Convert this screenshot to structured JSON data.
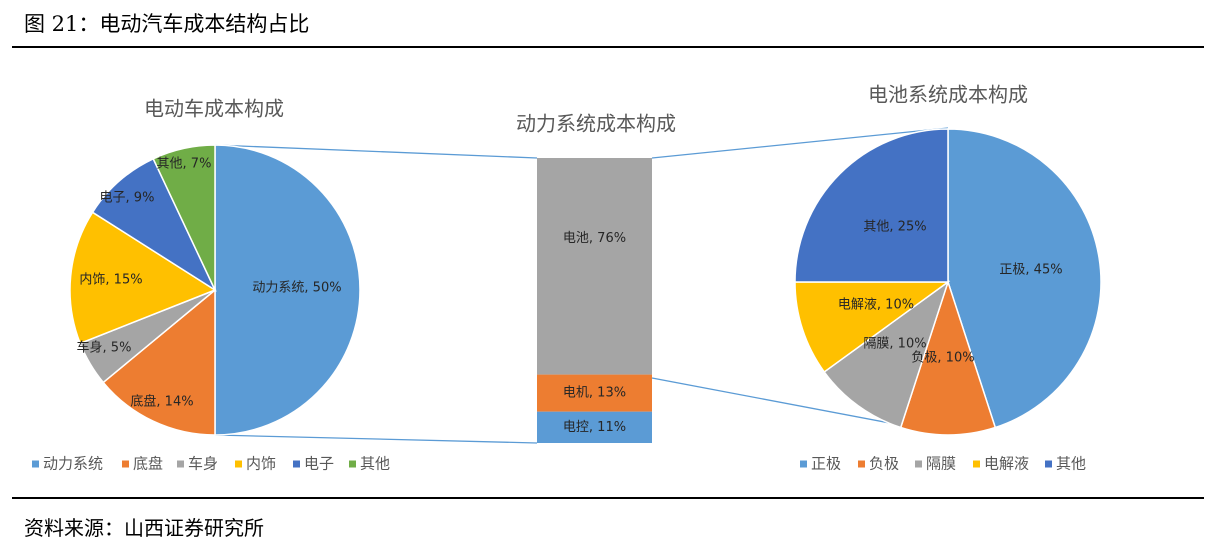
{
  "figure": {
    "title": "图 21：电动汽车成本结构占比",
    "source": "资料来源：山西证券研究所"
  },
  "colors": {
    "blue": "#5b9bd5",
    "orange": "#ed7d31",
    "gray": "#a5a5a5",
    "yellow": "#ffc000",
    "darkblue": "#4472c4",
    "green": "#70ad47",
    "connector": "#5b9bd5"
  },
  "chart_data": [
    {
      "type": "pie",
      "title": "电动车成本构成",
      "series": [
        {
          "name": "动力系统",
          "value": 50,
          "label": "动力系统, 50%",
          "color": "#5b9bd5"
        },
        {
          "name": "底盘",
          "value": 14,
          "label": "底盘, 14%",
          "color": "#ed7d31"
        },
        {
          "name": "车身",
          "value": 5,
          "label": "车身, 5%",
          "color": "#a5a5a5"
        },
        {
          "name": "内饰",
          "value": 15,
          "label": "内饰, 15%",
          "color": "#ffc000"
        },
        {
          "name": "电子",
          "value": 9,
          "label": "电子, 9%",
          "color": "#4472c4"
        },
        {
          "name": "其他",
          "value": 7,
          "label": "其他, 7%",
          "color": "#70ad47"
        }
      ],
      "legend_position": "bottom"
    },
    {
      "type": "bar",
      "title": "动力系统成本构成",
      "stacked": true,
      "series": [
        {
          "name": "电池",
          "value": 76,
          "label": "电池,   76%",
          "color": "#a5a5a5"
        },
        {
          "name": "电机",
          "value": 13,
          "label": "电机, 13%",
          "color": "#ed7d31"
        },
        {
          "name": "电控",
          "value": 11,
          "label": "电控, 11%",
          "color": "#5b9bd5"
        }
      ]
    },
    {
      "type": "pie",
      "title": "电池系统成本构成",
      "series": [
        {
          "name": "正极",
          "value": 45,
          "label": "正极, 45%",
          "color": "#5b9bd5"
        },
        {
          "name": "负极",
          "value": 10,
          "label": "负极, 10%",
          "color": "#ed7d31"
        },
        {
          "name": "隔膜",
          "value": 10,
          "label": "隔膜, 10%",
          "color": "#a5a5a5"
        },
        {
          "name": "电解液",
          "value": 10,
          "label": "电解液, 10%",
          "color": "#ffc000"
        },
        {
          "name": "其他",
          "value": 25,
          "label": "其他, 25%",
          "color": "#4472c4"
        }
      ],
      "legend_position": "bottom"
    }
  ]
}
